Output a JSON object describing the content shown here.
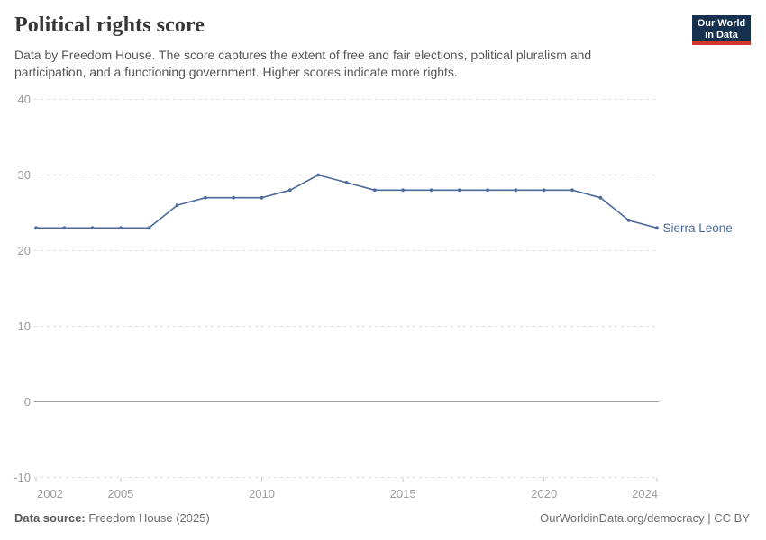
{
  "header": {
    "title": "Political rights score",
    "subtitle_lines": [
      "Data by Freedom House. The score captures the extent of free and fair elections, political pluralism and",
      "participation, and a functioning government. Higher scores indicate more rights."
    ],
    "logo": {
      "line1": "Our World",
      "line2": "in Data"
    }
  },
  "footer": {
    "source_label": "Data source:",
    "source_value": "Freedom House (2025)",
    "link": "OurWorldinData.org/democracy | CC BY"
  },
  "chart_data": {
    "type": "line",
    "title": "Political rights score",
    "entity": "Sierra Leone",
    "x": [
      2002,
      2003,
      2004,
      2005,
      2006,
      2007,
      2008,
      2009,
      2010,
      2011,
      2012,
      2013,
      2014,
      2015,
      2016,
      2017,
      2018,
      2019,
      2020,
      2021,
      2022,
      2023,
      2024
    ],
    "values": [
      23,
      23,
      23,
      23,
      23,
      26,
      27,
      27,
      27,
      28,
      30,
      29,
      28,
      28,
      28,
      28,
      28,
      28,
      28,
      28,
      27,
      24,
      23
    ],
    "xlabel": "",
    "ylabel": "",
    "ylim": [
      -10,
      40
    ],
    "yticks": [
      -10,
      0,
      10,
      20,
      30,
      40
    ],
    "xticks": [
      2002,
      2005,
      2010,
      2015,
      2020,
      2024
    ],
    "grid": "horizontal-dashed",
    "legend_position": "end-of-line-label",
    "colors": {
      "line": "#4C6A9C",
      "marker": "#4C6A9C",
      "entity_label": "#4C6A9C",
      "grid_dashed": "#dcdcdc",
      "zero_line": "#a0a0a0",
      "tick_mark": "#c9c9c9",
      "axis_text": "#9a9a9a"
    }
  }
}
